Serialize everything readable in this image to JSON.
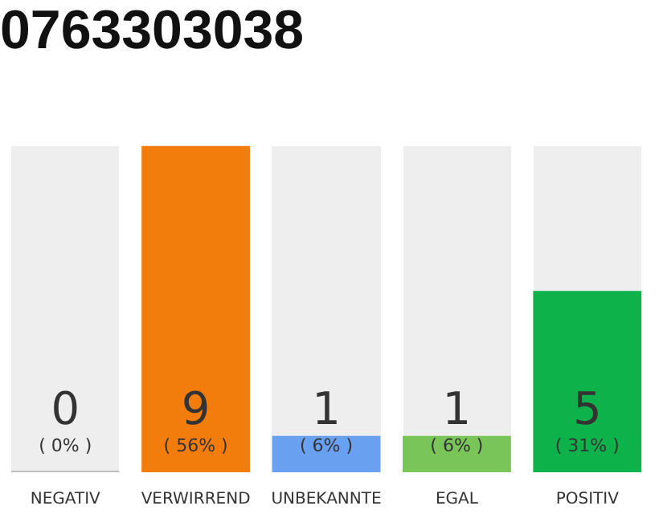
{
  "chart_data": {
    "type": "bar",
    "title": "0763303038",
    "categories": [
      "NEGATIV",
      "VERWIRREND",
      "UNBEKANNTE",
      "EGAL",
      "POSITIV"
    ],
    "values": [
      0,
      9,
      1,
      1,
      5
    ],
    "colors": [
      "#bdbdbd",
      "#f27d0c",
      "#6aa0f0",
      "#7ac55a",
      "#0db34a"
    ],
    "data_labels": true,
    "annotations": [
      "( 0% )",
      "( 56% )",
      "( 6% )",
      "( 6% )",
      "( 31% )"
    ],
    "tick_labels": "x",
    "grid": false,
    "legend": false
  }
}
